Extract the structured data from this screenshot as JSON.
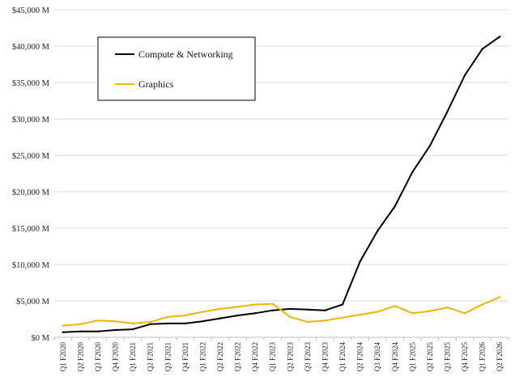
{
  "chart_data": {
    "type": "line",
    "title": "",
    "xlabel": "",
    "ylabel": "",
    "ylim": [
      0,
      45000
    ],
    "y_ticks": [
      0,
      5000,
      10000,
      15000,
      20000,
      25000,
      30000,
      35000,
      40000,
      45000
    ],
    "y_tick_labels": [
      "$0 M",
      "$5,000 M",
      "$10,000 M",
      "$15,000 M",
      "$20,000 M",
      "$25,000 M",
      "$30,000 M",
      "$35,000 M",
      "$40,000 M",
      "$45,000 M"
    ],
    "grid": "horizontal",
    "legend_position": "top-left",
    "categories": [
      "Q1 F2020",
      "Q2 F2020",
      "Q3 F2020",
      "Q4 F2020",
      "Q1 F2021",
      "Q2 F2021",
      "Q3 F2021",
      "Q4 F2021",
      "Q1 F2022",
      "Q2 F2022",
      "Q3 F2022",
      "Q4 F2022",
      "Q1 F2023",
      "Q2 F2023",
      "Q3 F2023",
      "Q4 F2023",
      "Q1 F2024",
      "Q2 F2024",
      "Q3 F2024",
      "Q4 F2024",
      "Q1 F2025",
      "Q2 F2025",
      "Q3 F2025",
      "Q4 F2025",
      "Q1 F2026",
      "Q2 F2026"
    ],
    "series": [
      {
        "name": "Compute & Networking",
        "color": "#000000",
        "values": [
          700,
          800,
          800,
          1000,
          1100,
          1800,
          1900,
          1900,
          2200,
          2600,
          3000,
          3300,
          3700,
          3900,
          3800,
          3700,
          4500,
          10400,
          14600,
          18000,
          22700,
          26300,
          31000,
          36000,
          39600,
          41300
        ]
      },
      {
        "name": "Graphics",
        "color": "#f0b400",
        "values": [
          1600,
          1800,
          2300,
          2200,
          1900,
          2100,
          2800,
          3000,
          3500,
          3900,
          4200,
          4500,
          4600,
          2800,
          2100,
          2300,
          2700,
          3100,
          3500,
          4300,
          3300,
          3600,
          4100,
          3300,
          4500,
          5500
        ]
      }
    ]
  }
}
